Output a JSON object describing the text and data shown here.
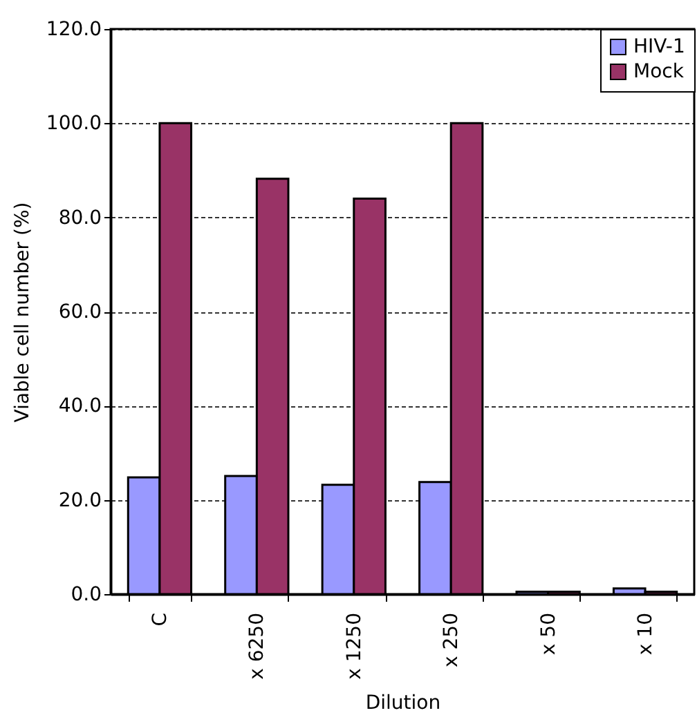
{
  "chart_data": {
    "type": "bar",
    "xlabel": "Dilution",
    "ylabel": "Viable cell number (%)",
    "categories": [
      "C",
      "x 6250",
      "x 1250",
      "x 250",
      "x 50",
      "x 10"
    ],
    "series": [
      {
        "name": "HIV-1",
        "color": "#9999ff",
        "values": [
          24.8,
          25.1,
          23.2,
          23.8,
          0.5,
          1.2
        ]
      },
      {
        "name": "Mock",
        "color": "#993366",
        "values": [
          100,
          88.2,
          84.0,
          100,
          0.5,
          0.5
        ]
      }
    ],
    "ylim": [
      0,
      120
    ],
    "yticks": [
      {
        "value": 0,
        "label": "0.0"
      },
      {
        "value": 20,
        "label": "20.0"
      },
      {
        "value": 40,
        "label": "40.0"
      },
      {
        "value": 60,
        "label": "60.0"
      },
      {
        "value": 80,
        "label": "80.0"
      },
      {
        "value": 100,
        "label": "100.0"
      },
      {
        "value": 120,
        "label": "120.0"
      }
    ],
    "grid": "y",
    "legend": "top right"
  }
}
